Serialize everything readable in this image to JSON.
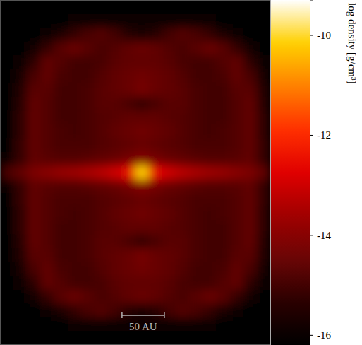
{
  "chart_data": {
    "type": "heatmap",
    "colorbar_label": "log density [g/cm³]",
    "xlim": [
      -169,
      150
    ],
    "ylim": [
      -203,
      204
    ],
    "tick_labels": false,
    "zlim": [
      -16.2,
      -9.3
    ],
    "zticks": [
      -10,
      -12,
      -14,
      -16
    ],
    "scale_bar": {
      "length": 50,
      "label": "50 AU"
    },
    "cells": [
      [
        -16.3,
        -16.3,
        -16.3,
        -16.3,
        -16.3,
        -16.3,
        -16.3,
        -16.3,
        -16.3,
        -16.3,
        -16.3,
        -16.3,
        -16.3,
        -16.3,
        -16.3,
        -16.3,
        -16.3,
        -16.3,
        -16.3,
        -16.3
      ],
      [
        -16.2,
        -16.2,
        -16.2,
        -16.2,
        -16.1,
        -16.0,
        -16.0,
        -16.0,
        -16.0,
        -16.0,
        -16.0,
        -16.0,
        -16.0,
        -16.0,
        -16.0,
        -16.0,
        -16.1,
        -16.2,
        -16.2,
        -16.2
      ],
      [
        -16.2,
        -16.2,
        -16.1,
        -15.9,
        -15.6,
        -15.2,
        -14.9,
        -14.8,
        -15.0,
        -15.4,
        -15.6,
        -15.4,
        -15.0,
        -14.8,
        -14.9,
        -15.2,
        -15.6,
        -15.9,
        -16.1,
        -16.2
      ],
      [
        -16.2,
        -16.1,
        -15.8,
        -15.2,
        -14.7,
        -14.5,
        -14.7,
        -14.9,
        -14.8,
        -14.6,
        -14.5,
        -14.6,
        -14.8,
        -14.9,
        -14.7,
        -14.5,
        -14.7,
        -15.2,
        -15.8,
        -16.1
      ],
      [
        -16.2,
        -15.9,
        -15.3,
        -14.6,
        -14.8,
        -15.0,
        -15.0,
        -14.9,
        -14.7,
        -14.6,
        -14.6,
        -14.6,
        -14.7,
        -14.9,
        -15.0,
        -15.0,
        -14.8,
        -14.6,
        -15.3,
        -15.9
      ],
      [
        -16.2,
        -15.7,
        -14.9,
        -14.6,
        -14.9,
        -15.0,
        -15.0,
        -14.8,
        -14.6,
        -14.5,
        -14.4,
        -14.5,
        -14.6,
        -14.8,
        -15.0,
        -15.0,
        -14.9,
        -14.6,
        -14.9,
        -15.7
      ],
      [
        -16.2,
        -15.5,
        -14.7,
        -14.7,
        -15.0,
        -15.0,
        -14.9,
        -14.7,
        -14.6,
        -14.5,
        -14.3,
        -14.5,
        -14.6,
        -14.7,
        -14.9,
        -15.0,
        -15.0,
        -14.7,
        -14.7,
        -15.5
      ],
      [
        -16.2,
        -15.4,
        -14.6,
        -14.8,
        -15.0,
        -15.0,
        -14.9,
        -14.7,
        -14.7,
        -14.9,
        -15.2,
        -14.9,
        -14.7,
        -14.7,
        -14.9,
        -15.0,
        -15.0,
        -14.8,
        -14.6,
        -15.4
      ],
      [
        -16.2,
        -15.3,
        -14.6,
        -14.8,
        -15.0,
        -15.0,
        -14.9,
        -14.8,
        -14.7,
        -14.6,
        -14.6,
        -14.6,
        -14.7,
        -14.8,
        -14.9,
        -15.0,
        -15.0,
        -14.8,
        -14.6,
        -15.3
      ],
      [
        -16.2,
        -15.3,
        -14.6,
        -14.8,
        -14.9,
        -15.0,
        -14.9,
        -14.8,
        -14.6,
        -14.5,
        -14.4,
        -14.5,
        -14.6,
        -14.8,
        -14.9,
        -15.0,
        -14.9,
        -14.8,
        -14.6,
        -15.3
      ],
      [
        -16.1,
        -15.2,
        -14.6,
        -14.8,
        -14.9,
        -14.9,
        -14.9,
        -14.8,
        -14.7,
        -14.6,
        -14.5,
        -14.6,
        -14.7,
        -14.8,
        -14.9,
        -14.9,
        -14.9,
        -14.8,
        -14.6,
        -15.2
      ],
      [
        -16.0,
        -15.2,
        -14.6,
        -14.7,
        -14.8,
        -14.8,
        -14.7,
        -14.6,
        -14.5,
        -14.3,
        -14.1,
        -14.3,
        -14.5,
        -14.6,
        -14.7,
        -14.8,
        -14.8,
        -14.7,
        -14.6,
        -15.2
      ],
      [
        -14.9,
        -14.6,
        -14.2,
        -14.0,
        -13.8,
        -13.7,
        -13.5,
        -13.3,
        -13.0,
        -12.5,
        -10.2,
        -12.5,
        -13.0,
        -13.3,
        -13.5,
        -13.7,
        -13.8,
        -14.0,
        -14.2,
        -14.6
      ],
      [
        -16.0,
        -15.2,
        -14.6,
        -14.7,
        -14.8,
        -14.8,
        -14.7,
        -14.6,
        -14.5,
        -14.3,
        -14.1,
        -14.3,
        -14.5,
        -14.6,
        -14.7,
        -14.8,
        -14.8,
        -14.7,
        -14.6,
        -15.2
      ],
      [
        -16.1,
        -15.2,
        -14.6,
        -14.8,
        -14.9,
        -14.9,
        -14.9,
        -14.8,
        -14.7,
        -14.6,
        -14.5,
        -14.6,
        -14.7,
        -14.8,
        -14.9,
        -14.9,
        -14.9,
        -14.8,
        -14.6,
        -15.2
      ],
      [
        -16.2,
        -15.3,
        -14.6,
        -14.8,
        -14.9,
        -15.0,
        -14.9,
        -14.8,
        -14.6,
        -14.5,
        -14.4,
        -14.5,
        -14.6,
        -14.8,
        -14.9,
        -15.0,
        -14.9,
        -14.8,
        -14.6,
        -15.3
      ],
      [
        -16.2,
        -15.3,
        -14.6,
        -14.8,
        -15.0,
        -15.0,
        -14.9,
        -14.8,
        -14.7,
        -14.6,
        -14.6,
        -14.6,
        -14.7,
        -14.8,
        -14.9,
        -15.0,
        -15.0,
        -14.8,
        -14.6,
        -15.3
      ],
      [
        -16.2,
        -15.4,
        -14.6,
        -14.8,
        -15.0,
        -15.0,
        -14.9,
        -14.7,
        -14.7,
        -14.9,
        -15.2,
        -14.9,
        -14.7,
        -14.7,
        -14.9,
        -15.0,
        -15.0,
        -14.8,
        -14.6,
        -15.4
      ],
      [
        -16.2,
        -15.5,
        -14.7,
        -14.7,
        -15.0,
        -15.0,
        -14.9,
        -14.7,
        -14.6,
        -14.5,
        -14.3,
        -14.5,
        -14.6,
        -14.7,
        -14.9,
        -15.0,
        -15.0,
        -14.7,
        -14.7,
        -15.5
      ],
      [
        -16.2,
        -15.7,
        -14.9,
        -14.6,
        -14.9,
        -15.0,
        -15.0,
        -14.8,
        -14.6,
        -14.5,
        -14.4,
        -14.5,
        -14.6,
        -14.8,
        -15.0,
        -15.0,
        -14.9,
        -14.6,
        -14.9,
        -15.7
      ],
      [
        -16.2,
        -15.9,
        -15.3,
        -14.6,
        -14.8,
        -15.0,
        -15.0,
        -14.9,
        -14.7,
        -14.6,
        -14.6,
        -14.6,
        -14.7,
        -14.9,
        -15.0,
        -15.0,
        -14.8,
        -14.6,
        -15.3,
        -15.9
      ],
      [
        -16.2,
        -16.1,
        -15.8,
        -15.2,
        -14.7,
        -14.5,
        -14.7,
        -14.9,
        -14.8,
        -14.6,
        -14.5,
        -14.6,
        -14.8,
        -14.9,
        -14.7,
        -14.5,
        -14.7,
        -15.2,
        -15.8,
        -16.1
      ],
      [
        -16.2,
        -16.2,
        -16.1,
        -15.9,
        -15.6,
        -15.2,
        -14.9,
        -14.8,
        -15.0,
        -15.4,
        -15.6,
        -15.4,
        -15.0,
        -14.8,
        -14.9,
        -15.2,
        -15.6,
        -15.9,
        -16.1,
        -16.2
      ],
      [
        -16.2,
        -16.2,
        -16.2,
        -16.2,
        -16.1,
        -16.0,
        -16.0,
        -16.0,
        -16.0,
        -16.0,
        -16.0,
        -16.0,
        -16.0,
        -16.0,
        -16.0,
        -16.0,
        -16.1,
        -16.2,
        -16.2,
        -16.2
      ],
      [
        -16.3,
        -16.3,
        -16.3,
        -16.3,
        -16.3,
        -16.3,
        -16.3,
        -16.3,
        -16.3,
        -16.3,
        -16.3,
        -16.3,
        -16.3,
        -16.3,
        -16.3,
        -16.3,
        -16.3,
        -16.3,
        -16.3,
        -16.3
      ]
    ]
  }
}
